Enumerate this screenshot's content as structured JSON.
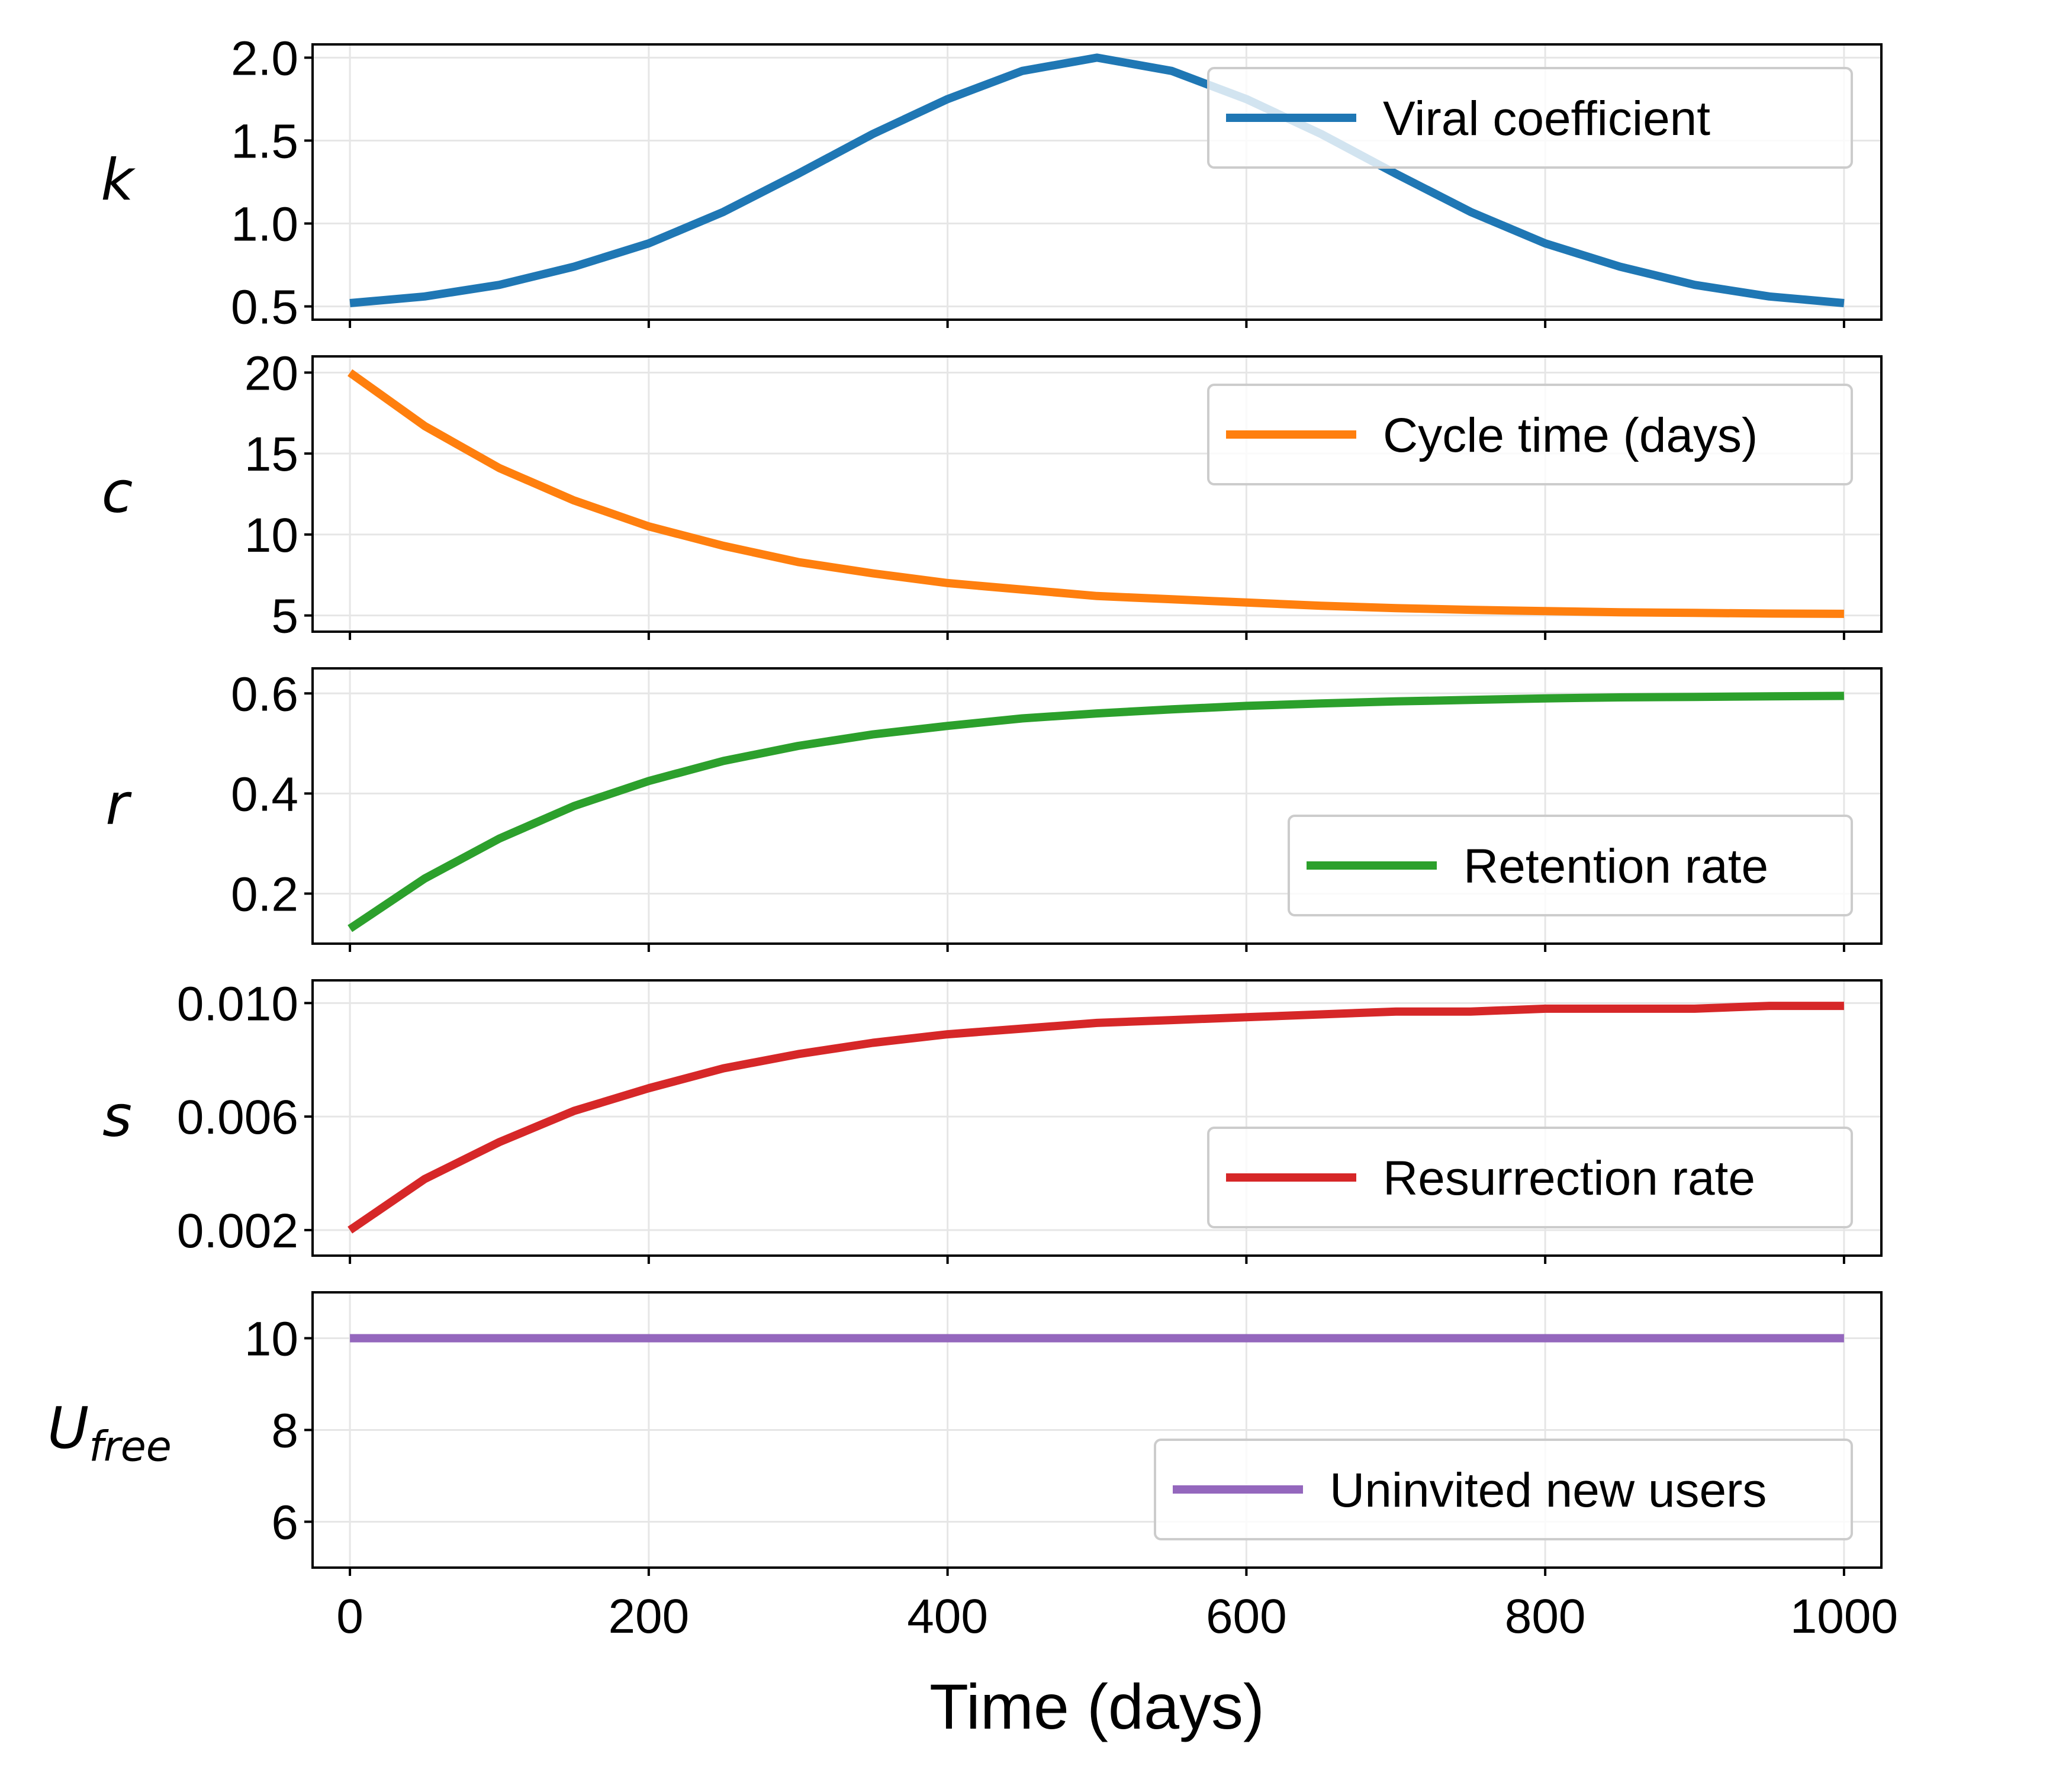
{
  "chart_data": {
    "type": "line",
    "xlabel": "Time (days)",
    "x_ticks": [
      0,
      200,
      400,
      600,
      800,
      1000
    ],
    "xlim": [
      -25,
      1025
    ],
    "grid": true,
    "panels": [
      {
        "ylabel": "k",
        "ylim": [
          0.42,
          2.08
        ],
        "y_ticks": [
          0.5,
          1.0,
          1.5,
          2.0
        ],
        "y_tick_labels": [
          "0.5",
          "1.0",
          "1.5",
          "2.0"
        ],
        "legend_position": "top-right",
        "series": [
          {
            "name": "Viral coefficient",
            "color": "#1f77b4",
            "x": [
              0,
              50,
              100,
              150,
              200,
              250,
              300,
              350,
              400,
              450,
              500,
              550,
              600,
              650,
              700,
              750,
              800,
              850,
              900,
              950,
              1000
            ],
            "y": [
              0.52,
              0.56,
              0.63,
              0.74,
              0.88,
              1.07,
              1.3,
              1.54,
              1.75,
              1.92,
              2.0,
              1.92,
              1.75,
              1.54,
              1.3,
              1.07,
              0.88,
              0.74,
              0.63,
              0.56,
              0.52
            ]
          }
        ]
      },
      {
        "ylabel": "c",
        "ylim": [
          4.0,
          21.0
        ],
        "y_ticks": [
          5,
          10,
          15,
          20
        ],
        "y_tick_labels": [
          "5",
          "10",
          "15",
          "20"
        ],
        "legend_position": "upper-right",
        "series": [
          {
            "name": "Cycle time (days)",
            "color": "#ff7f0e",
            "x": [
              0,
              50,
              100,
              150,
              200,
              250,
              300,
              350,
              400,
              450,
              500,
              550,
              600,
              650,
              700,
              750,
              800,
              850,
              900,
              950,
              1000
            ],
            "y": [
              20.0,
              16.7,
              14.1,
              12.1,
              10.5,
              9.3,
              8.3,
              7.6,
              7.0,
              6.6,
              6.2,
              6.0,
              5.8,
              5.6,
              5.45,
              5.35,
              5.27,
              5.2,
              5.16,
              5.12,
              5.1
            ]
          }
        ]
      },
      {
        "ylabel": "r",
        "ylim": [
          0.1,
          0.65
        ],
        "y_ticks": [
          0.2,
          0.4,
          0.6
        ],
        "y_tick_labels": [
          "0.2",
          "0.4",
          "0.6"
        ],
        "legend_position": "lower-right",
        "series": [
          {
            "name": "Retention rate",
            "color": "#2ca02c",
            "x": [
              0,
              50,
              100,
              150,
              200,
              250,
              300,
              350,
              400,
              450,
              500,
              550,
              600,
              650,
              700,
              750,
              800,
              850,
              900,
              950,
              1000
            ],
            "y": [
              0.13,
              0.23,
              0.31,
              0.375,
              0.425,
              0.465,
              0.495,
              0.518,
              0.535,
              0.55,
              0.56,
              0.568,
              0.575,
              0.58,
              0.584,
              0.587,
              0.59,
              0.592,
              0.593,
              0.594,
              0.595
            ]
          }
        ]
      },
      {
        "ylabel": "s",
        "ylim": [
          0.0011,
          0.0108
        ],
        "y_ticks": [
          0.002,
          0.006,
          0.01
        ],
        "y_tick_labels": [
          "0.002",
          "0.006",
          "0.010"
        ],
        "legend_position": "lower-right",
        "series": [
          {
            "name": "Resurrection rate",
            "color": "#d62728",
            "x": [
              0,
              50,
              100,
              150,
              200,
              250,
              300,
              350,
              400,
              450,
              500,
              550,
              600,
              650,
              700,
              750,
              800,
              850,
              900,
              950,
              1000
            ],
            "y": [
              0.002,
              0.0038,
              0.0051,
              0.0062,
              0.007,
              0.0077,
              0.0082,
              0.0086,
              0.0089,
              0.0091,
              0.0093,
              0.0094,
              0.0095,
              0.0096,
              0.0097,
              0.0097,
              0.0098,
              0.0098,
              0.0098,
              0.0099,
              0.0099
            ]
          }
        ]
      },
      {
        "ylabel": "U",
        "ylabel_sub": "free",
        "ylim": [
          5.0,
          11.0
        ],
        "y_ticks": [
          6,
          8,
          10
        ],
        "y_tick_labels": [
          "6",
          "8",
          "10"
        ],
        "legend_position": "lower-right",
        "series": [
          {
            "name": "Uninvited new users",
            "color": "#9467bd",
            "x": [
              0,
              1000
            ],
            "y": [
              10,
              10
            ]
          }
        ]
      }
    ]
  }
}
